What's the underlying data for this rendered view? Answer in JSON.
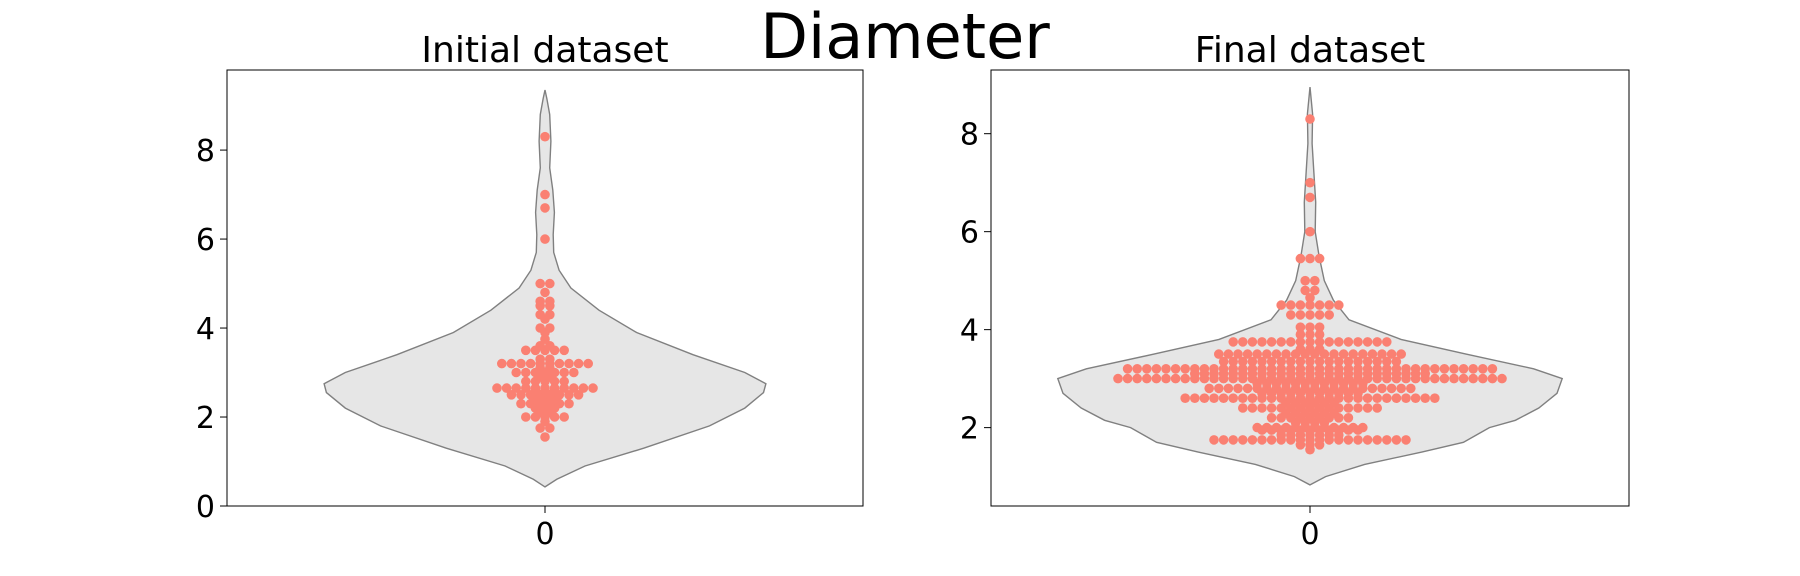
{
  "figure": {
    "title": "Diameter"
  },
  "colors": {
    "dots": "#fa8072",
    "violin_fill": "#e6e6e6",
    "violin_edge": "#808080"
  },
  "chart_data": [
    {
      "type": "violin-swarm",
      "title": "Initial dataset",
      "categories": [
        "0"
      ],
      "ylim": [
        0,
        9.8
      ],
      "yticks": [
        0,
        2,
        4,
        6,
        8
      ],
      "grid": false,
      "violin_profile": [
        {
          "y": 0.43,
          "w": 0.0
        },
        {
          "y": 0.6,
          "w": 0.05
        },
        {
          "y": 0.9,
          "w": 0.17
        },
        {
          "y": 1.3,
          "w": 0.42
        },
        {
          "y": 1.8,
          "w": 0.7
        },
        {
          "y": 2.2,
          "w": 0.85
        },
        {
          "y": 2.55,
          "w": 0.93
        },
        {
          "y": 2.75,
          "w": 0.94
        },
        {
          "y": 3.0,
          "w": 0.85
        },
        {
          "y": 3.4,
          "w": 0.63
        },
        {
          "y": 3.9,
          "w": 0.39
        },
        {
          "y": 4.4,
          "w": 0.23
        },
        {
          "y": 4.9,
          "w": 0.11
        },
        {
          "y": 5.3,
          "w": 0.06
        },
        {
          "y": 5.7,
          "w": 0.037
        },
        {
          "y": 6.1,
          "w": 0.035
        },
        {
          "y": 6.6,
          "w": 0.04
        },
        {
          "y": 7.1,
          "w": 0.033
        },
        {
          "y": 7.6,
          "w": 0.02
        },
        {
          "y": 8.2,
          "w": 0.025
        },
        {
          "y": 8.8,
          "w": 0.02
        },
        {
          "y": 9.15,
          "w": 0.008
        },
        {
          "y": 9.35,
          "w": 0.0
        }
      ],
      "rows": [
        {
          "y": 1.55,
          "n": 1
        },
        {
          "y": 1.75,
          "n": 2
        },
        {
          "y": 1.9,
          "n": 1
        },
        {
          "y": 2.0,
          "n": 5
        },
        {
          "y": 2.1,
          "n": 2
        },
        {
          "y": 2.2,
          "n": 3
        },
        {
          "y": 2.3,
          "n": 6
        },
        {
          "y": 2.4,
          "n": 3
        },
        {
          "y": 2.5,
          "n": 8
        },
        {
          "y": 2.6,
          "n": 3
        },
        {
          "y": 2.65,
          "n": 11
        },
        {
          "y": 2.8,
          "n": 5
        },
        {
          "y": 2.9,
          "n": 2
        },
        {
          "y": 3.0,
          "n": 7
        },
        {
          "y": 3.1,
          "n": 2
        },
        {
          "y": 3.2,
          "n": 10
        },
        {
          "y": 3.3,
          "n": 2
        },
        {
          "y": 3.5,
          "n": 5
        },
        {
          "y": 3.6,
          "n": 2
        },
        {
          "y": 3.75,
          "n": 1
        },
        {
          "y": 3.9,
          "n": 1
        },
        {
          "y": 4.0,
          "n": 2
        },
        {
          "y": 4.2,
          "n": 1
        },
        {
          "y": 4.3,
          "n": 2
        },
        {
          "y": 4.5,
          "n": 2
        },
        {
          "y": 4.6,
          "n": 2
        },
        {
          "y": 4.8,
          "n": 1
        },
        {
          "y": 5.0,
          "n": 2
        },
        {
          "y": 6.0,
          "n": 1
        },
        {
          "y": 6.7,
          "n": 1
        },
        {
          "y": 7.0,
          "n": 1
        },
        {
          "y": 8.3,
          "n": 1
        }
      ]
    },
    {
      "type": "violin-swarm",
      "title": "Final dataset",
      "categories": [
        "0"
      ],
      "ylim": [
        0.4,
        9.3
      ],
      "yticks": [
        2,
        4,
        6,
        8
      ],
      "grid": false,
      "violin_profile": [
        {
          "y": 0.83,
          "w": 0.0
        },
        {
          "y": 1.0,
          "w": 0.06
        },
        {
          "y": 1.25,
          "w": 0.21
        },
        {
          "y": 1.5,
          "w": 0.43
        },
        {
          "y": 1.7,
          "w": 0.59
        },
        {
          "y": 1.85,
          "w": 0.64
        },
        {
          "y": 2.0,
          "w": 0.69
        },
        {
          "y": 2.15,
          "w": 0.79
        },
        {
          "y": 2.4,
          "w": 0.88
        },
        {
          "y": 2.7,
          "w": 0.95
        },
        {
          "y": 3.0,
          "w": 0.97
        },
        {
          "y": 3.2,
          "w": 0.86
        },
        {
          "y": 3.5,
          "w": 0.6
        },
        {
          "y": 3.8,
          "w": 0.35
        },
        {
          "y": 4.2,
          "w": 0.15
        },
        {
          "y": 4.6,
          "w": 0.09
        },
        {
          "y": 5.0,
          "w": 0.055
        },
        {
          "y": 5.5,
          "w": 0.035
        },
        {
          "y": 6.0,
          "w": 0.02
        },
        {
          "y": 6.6,
          "w": 0.022
        },
        {
          "y": 7.2,
          "w": 0.015
        },
        {
          "y": 7.8,
          "w": 0.008
        },
        {
          "y": 8.4,
          "w": 0.01
        },
        {
          "y": 8.95,
          "w": 0.0
        }
      ],
      "rows": [
        {
          "y": 1.55,
          "n": 1
        },
        {
          "y": 1.65,
          "n": 3
        },
        {
          "y": 1.75,
          "n": 21
        },
        {
          "y": 1.85,
          "n": 7
        },
        {
          "y": 1.95,
          "n": 11
        },
        {
          "y": 2.0,
          "n": 12
        },
        {
          "y": 2.1,
          "n": 4
        },
        {
          "y": 2.2,
          "n": 9
        },
        {
          "y": 2.3,
          "n": 6
        },
        {
          "y": 2.4,
          "n": 15
        },
        {
          "y": 2.5,
          "n": 6
        },
        {
          "y": 2.6,
          "n": 27
        },
        {
          "y": 2.7,
          "n": 11
        },
        {
          "y": 2.8,
          "n": 22
        },
        {
          "y": 2.9,
          "n": 12
        },
        {
          "y": 3.0,
          "n": 41
        },
        {
          "y": 3.1,
          "n": 25
        },
        {
          "y": 3.2,
          "n": 39
        },
        {
          "y": 3.35,
          "n": 19
        },
        {
          "y": 3.5,
          "n": 20
        },
        {
          "y": 3.6,
          "n": 3
        },
        {
          "y": 3.75,
          "n": 17
        },
        {
          "y": 3.9,
          "n": 3
        },
        {
          "y": 4.05,
          "n": 3
        },
        {
          "y": 4.3,
          "n": 5
        },
        {
          "y": 4.5,
          "n": 7
        },
        {
          "y": 4.65,
          "n": 1
        },
        {
          "y": 4.8,
          "n": 2
        },
        {
          "y": 5.0,
          "n": 2
        },
        {
          "y": 5.45,
          "n": 3
        },
        {
          "y": 6.0,
          "n": 1
        },
        {
          "y": 6.7,
          "n": 1
        },
        {
          "y": 7.0,
          "n": 1
        },
        {
          "y": 8.3,
          "n": 1
        }
      ]
    }
  ]
}
